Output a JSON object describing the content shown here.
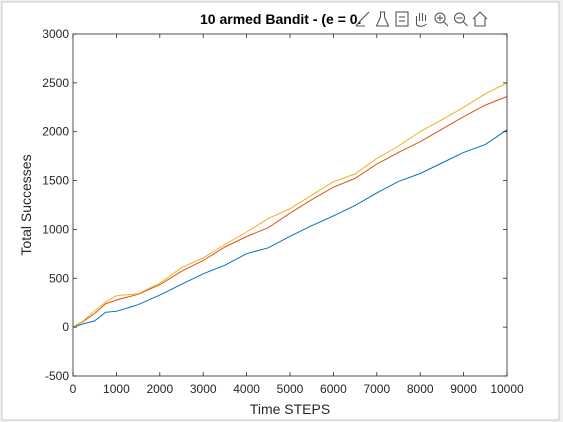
{
  "window": {
    "title": "10 armed Bandit - (e = 0.",
    "toolbar_icons": [
      "brush-icon",
      "data-tips-icon",
      "legend-icon",
      "pan-icon",
      "zoom-in-icon",
      "zoom-out-icon",
      "home-icon"
    ]
  },
  "chart_data": {
    "type": "line",
    "title": "10 armed Bandit - (e = 0.",
    "xlabel": "Time STEPS",
    "ylabel": "Total Successes",
    "xlim": [
      0,
      10000
    ],
    "ylim": [
      -500,
      3000
    ],
    "xticks": [
      0,
      1000,
      2000,
      3000,
      4000,
      5000,
      6000,
      7000,
      8000,
      9000,
      10000
    ],
    "yticks": [
      -500,
      0,
      500,
      1000,
      1500,
      2000,
      2500,
      3000
    ],
    "grid": false,
    "series": [
      {
        "color": "#0072BD",
        "x": [
          0,
          250,
          500,
          750,
          1000,
          1500,
          2000,
          2500,
          3000,
          3500,
          4000,
          4500,
          5000,
          5500,
          6000,
          6500,
          7000,
          7500,
          8000,
          8500,
          9000,
          9500,
          10000
        ],
        "values": [
          0,
          40,
          60,
          140,
          170,
          230,
          320,
          450,
          550,
          630,
          740,
          820,
          930,
          1030,
          1150,
          1250,
          1370,
          1480,
          1580,
          1680,
          1780,
          1880,
          2020
        ]
      },
      {
        "color": "#D95319",
        "x": [
          0,
          250,
          500,
          750,
          1000,
          1500,
          2000,
          2500,
          3000,
          3500,
          4000,
          4500,
          5000,
          5500,
          6000,
          6500,
          7000,
          7500,
          8000,
          8500,
          9000,
          9500,
          10000
        ],
        "values": [
          0,
          70,
          140,
          230,
          290,
          340,
          430,
          560,
          690,
          820,
          920,
          1030,
          1170,
          1300,
          1420,
          1530,
          1670,
          1780,
          1910,
          2030,
          2150,
          2260,
          2360
        ]
      },
      {
        "color": "#EDB120",
        "x": [
          0,
          250,
          500,
          750,
          1000,
          1500,
          2000,
          2500,
          3000,
          3500,
          4000,
          4500,
          5000,
          5500,
          6000,
          6500,
          7000,
          7500,
          8000,
          8500,
          9000,
          9500,
          10000
        ],
        "values": [
          0,
          80,
          170,
          250,
          310,
          350,
          450,
          600,
          720,
          850,
          970,
          1100,
          1220,
          1350,
          1480,
          1580,
          1730,
          1850,
          1990,
          2130,
          2250,
          2380,
          2500
        ]
      }
    ]
  }
}
